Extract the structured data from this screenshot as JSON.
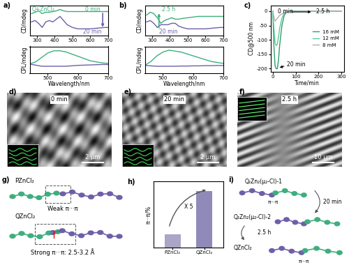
{
  "chart_data": [
    {
      "panel": "a)",
      "type": "line",
      "x": [
        270,
        290,
        310,
        330,
        350,
        370,
        390,
        410,
        430,
        450,
        470,
        500,
        530,
        560,
        600,
        640,
        680,
        700
      ],
      "series": [
        {
          "color": "#3fae7e",
          "values": [
            4,
            5,
            6,
            4,
            5,
            5,
            5.5,
            6,
            7,
            6,
            5.5,
            5.5,
            5.5,
            5.5,
            5.5,
            5.5,
            5.5,
            5.5
          ]
        },
        {
          "color": "#6f5fa8",
          "values": [
            -2,
            -1,
            -3,
            -6,
            -2,
            -1,
            -2,
            0,
            2,
            -1,
            -4,
            -6,
            -7,
            -7,
            -7,
            -6.5,
            -6,
            -6
          ]
        }
      ],
      "xlim": [
        260,
        700
      ],
      "xticks": [
        300,
        400,
        500,
        600,
        700
      ],
      "ylim": [
        -12,
        10
      ],
      "ylabel": "CD/mdeg",
      "tick_labels": "x",
      "annotations": [
        "Q+ZnCl₂",
        "0 min",
        "20 min"
      ]
    },
    {
      "type": "line",
      "x": [
        440,
        460,
        480,
        500,
        520,
        540,
        560,
        580,
        600,
        620,
        640,
        660,
        680,
        700
      ],
      "series": [
        {
          "color": "#3fae7e",
          "values": [
            0,
            1,
            3,
            5,
            6,
            6,
            5.5,
            4.5,
            3.5,
            2.5,
            1.5,
            1,
            0.5,
            0.3
          ]
        },
        {
          "color": "#6f5fa8",
          "values": [
            0,
            -0.5,
            -1,
            -1,
            -1,
            -1,
            -1,
            -0.8,
            -0.6,
            -0.5,
            -0.4,
            -0.3,
            -0.2,
            -0.2
          ]
        }
      ],
      "xlim": [
        440,
        700
      ],
      "xticks": [
        500,
        600,
        700
      ],
      "ylim": [
        -4,
        8
      ],
      "xlabel": "Wavelength/nm",
      "ylabel": "CPL/mdeg",
      "tick_labels": "x"
    },
    {
      "panel": "b)",
      "type": "line",
      "x": [
        270,
        290,
        310,
        330,
        350,
        370,
        390,
        410,
        430,
        450,
        470,
        500,
        530,
        560,
        600,
        640,
        680,
        700
      ],
      "series": [
        {
          "color": "#3fae7e",
          "values": [
            3,
            5,
            4,
            1,
            -3,
            -1,
            0,
            1,
            0,
            0,
            0.5,
            1,
            1.5,
            2,
            2,
            2,
            2,
            2
          ]
        },
        {
          "color": "#6f5fa8",
          "values": [
            -2,
            -1,
            -3,
            -6,
            -4,
            -4,
            -4,
            -3,
            -3,
            -5,
            -6,
            -7,
            -7,
            -7,
            -7,
            -6.5,
            -6,
            -6
          ]
        }
      ],
      "xlim": [
        260,
        700
      ],
      "xticks": [
        300,
        400,
        500,
        600,
        700
      ],
      "ylim": [
        -12,
        10
      ],
      "ylabel": "CD/mdeg",
      "tick_labels": "x",
      "annotations": [
        "2.5 h",
        "20 min"
      ]
    },
    {
      "type": "line",
      "x": [
        440,
        460,
        480,
        500,
        520,
        540,
        560,
        580,
        600,
        620,
        640,
        660,
        680,
        700
      ],
      "series": [
        {
          "color": "#3fae7e",
          "values": [
            0,
            2,
            5,
            7,
            8,
            7.5,
            7,
            6,
            5,
            4,
            3,
            2,
            1.5,
            1
          ]
        },
        {
          "color": "#6f5fa8",
          "values": [
            0,
            -0.3,
            -0.5,
            -0.5,
            -0.5,
            -0.5,
            -0.4,
            -0.4,
            -0.3,
            -0.3,
            -0.2,
            -0.2,
            -0.1,
            -0.1
          ]
        }
      ],
      "xlim": [
        440,
        700
      ],
      "xticks": [
        500,
        600,
        700
      ],
      "ylim": [
        -4,
        10
      ],
      "xlabel": "Wavelength/nm",
      "ylabel": "CPL/mdeg",
      "tick_labels": "x"
    },
    {
      "panel": "c)",
      "type": "line",
      "x": [
        0,
        5,
        10,
        15,
        20,
        25,
        30,
        40,
        50,
        60,
        80,
        100,
        150,
        200,
        250,
        300
      ],
      "series": [
        {
          "name": "16 mM",
          "color": "#2e9e6b",
          "values": [
            0,
            -120,
            -190,
            -200,
            -200,
            -170,
            -120,
            -50,
            -15,
            -3,
            0,
            0,
            0,
            0,
            0,
            0
          ]
        },
        {
          "name": "12 mM",
          "color": "#5cc79a",
          "values": [
            0,
            -60,
            -110,
            -120,
            -115,
            -90,
            -60,
            -25,
            -8,
            -2,
            0,
            0,
            0,
            0,
            0,
            0
          ]
        },
        {
          "name": "8 mM",
          "color": "#b0b0b0",
          "values": [
            0,
            -20,
            -35,
            -30,
            -25,
            -20,
            -15,
            -10,
            -6,
            -4,
            -2,
            -1,
            0,
            0,
            0,
            0
          ]
        }
      ],
      "xlim": [
        -10,
        310
      ],
      "xticks": [
        0,
        100,
        200,
        300
      ],
      "ylim": [
        -210,
        20
      ],
      "yticks": [
        -200,
        -150,
        -100,
        -50,
        0
      ],
      "xlabel": "Time/min",
      "ylabel": "CD@500 nm",
      "legend": "center right",
      "annotations": [
        "0 min",
        "2.5 h",
        "20 min"
      ]
    },
    {
      "panel": "h)",
      "type": "bar",
      "categories": [
        "PZnCl₂",
        "QZnCl₂"
      ],
      "values": [
        3.5,
        14.5
      ],
      "colors": [
        "#a9a6c6",
        "#8f8ab8"
      ],
      "ylim": [
        0,
        17
      ],
      "ylabel": "π···π/%",
      "tick_labels": "x",
      "annotations": [
        "X 5"
      ]
    }
  ],
  "images": [
    {
      "panel": "d)",
      "time": "0 min",
      "scale_bar": "2 µm"
    },
    {
      "panel": "e)",
      "time": "20 min",
      "scale_bar": "2 µm"
    },
    {
      "panel": "f)",
      "time": "2.5 h",
      "scale_bar": "10 µm"
    }
  ],
  "diagrams": {
    "g": {
      "panel": "g)",
      "top_label": "PZnCl₂",
      "top_note": "Weak π···π",
      "bottom_label": "QZnCl₂",
      "bottom_note": "Strong π···π: 2.5-3.2 Å"
    },
    "i": {
      "panel": "i)",
      "label_1": "Q₂Zn₂(μ₂-Cl)-1",
      "label_2": "Q₂Zn₂(μ₂-Cl)-2",
      "label_3": "QZnCl₂",
      "stack_1": "π···π",
      "stack_2": "π···π",
      "step_1": "20 min",
      "step_2": "2.5 h"
    }
  }
}
